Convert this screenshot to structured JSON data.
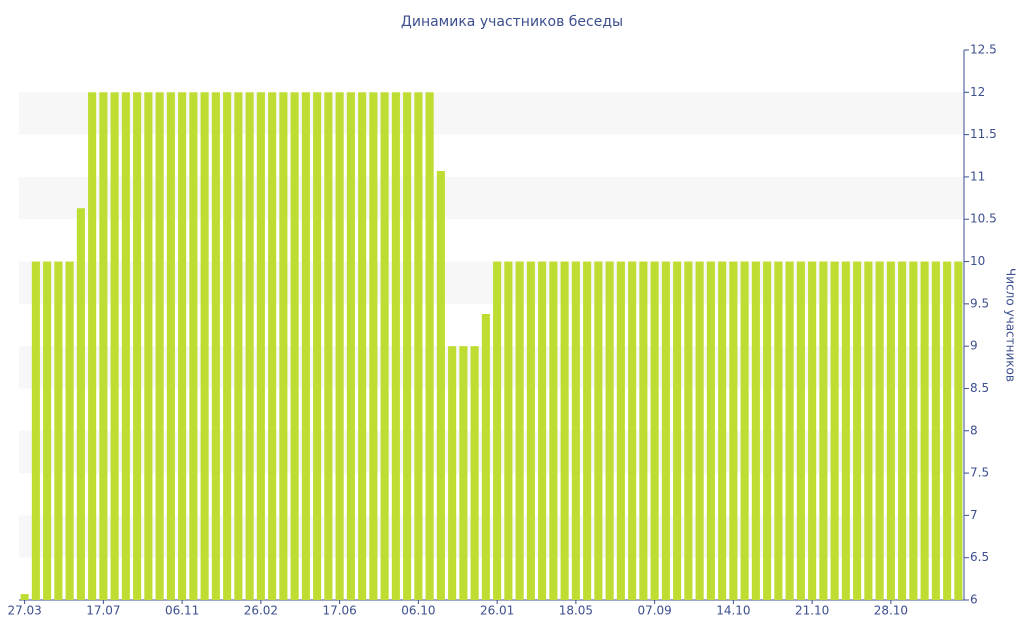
{
  "chart_data": {
    "type": "bar",
    "title": "Динамика участников беседы",
    "y_label": "Число участников",
    "categories": [
      "27.03",
      null,
      null,
      null,
      null,
      null,
      null,
      "17.07",
      null,
      null,
      null,
      null,
      null,
      null,
      "06.11",
      null,
      null,
      null,
      null,
      null,
      null,
      "26.02",
      null,
      null,
      null,
      null,
      null,
      null,
      "17.06",
      null,
      null,
      null,
      null,
      null,
      null,
      "06.10",
      null,
      null,
      null,
      null,
      null,
      null,
      "26.01",
      null,
      null,
      null,
      null,
      null,
      null,
      "18.05",
      null,
      null,
      null,
      null,
      null,
      null,
      "07.09",
      null,
      null,
      null,
      null,
      null,
      null,
      "14.10",
      null,
      null,
      null,
      null,
      null,
      null,
      "21.10",
      null,
      null,
      null,
      null,
      null,
      null,
      "28.10",
      null,
      null,
      null,
      null,
      null,
      null
    ],
    "values": [
      6.07,
      10,
      10,
      10,
      10,
      10.63,
      12,
      12,
      12,
      12,
      12,
      12,
      12,
      12,
      12,
      12,
      12,
      12,
      12,
      12,
      12,
      12,
      12,
      12,
      12,
      12,
      12,
      12,
      12,
      12,
      12,
      12,
      12,
      12,
      12,
      12,
      12,
      11.07,
      9,
      9,
      9,
      9.38,
      10,
      10,
      10,
      10,
      10,
      10,
      10,
      10,
      10,
      10,
      10,
      10,
      10,
      10,
      10,
      10,
      10,
      10,
      10,
      10,
      10,
      10,
      10,
      10,
      10,
      10,
      10,
      10,
      10,
      10,
      10,
      10,
      10,
      10,
      10,
      10,
      10,
      10,
      10,
      10,
      10,
      10
    ],
    "color": "#bedd32",
    "ylim": [
      6,
      12.5
    ],
    "yticks": [
      6,
      6.5,
      7,
      7.5,
      8,
      8.5,
      9,
      9.5,
      10,
      10.5,
      11,
      11.5,
      12,
      12.5
    ],
    "y_axis_side": "right",
    "striped_background": true
  }
}
